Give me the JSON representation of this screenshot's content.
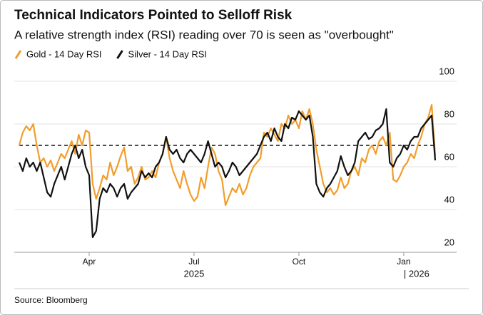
{
  "chart_data": {
    "type": "line",
    "title": "Technical Indicators Pointed to Selloff Risk",
    "subtitle": "A relative strength index (RSI) reading over 70 is seen as \"overbought\"",
    "source": "Source: Bloomberg",
    "categories": [
      null,
      null,
      null,
      null,
      null,
      null,
      null,
      null,
      null,
      null,
      null,
      null,
      null,
      null,
      null,
      null,
      null,
      null,
      null,
      null,
      "Apr",
      null,
      null,
      null,
      null,
      null,
      null,
      null,
      null,
      null,
      null,
      null,
      null,
      null,
      null,
      null,
      null,
      null,
      null,
      null,
      null,
      null,
      null,
      null,
      null,
      null,
      null,
      null,
      null,
      null,
      "Jul",
      null,
      null,
      null,
      null,
      null,
      null,
      null,
      null,
      null,
      null,
      null,
      null,
      null,
      null,
      null,
      null,
      null,
      null,
      null,
      null,
      null,
      null,
      null,
      null,
      null,
      null,
      null,
      null,
      null,
      "Oct",
      null,
      null,
      null,
      null,
      null,
      null,
      null,
      null,
      null,
      null,
      null,
      null,
      null,
      null,
      null,
      null,
      null,
      null,
      null,
      null,
      null,
      null,
      null,
      null,
      null,
      null,
      null,
      null,
      null,
      "Jan",
      null,
      null,
      null,
      null,
      null,
      null,
      null,
      null,
      null
    ],
    "year_labels": [
      {
        "label": "2025",
        "category": "Jul"
      },
      {
        "label": "| 2026",
        "category": "Jan"
      }
    ],
    "series": [
      {
        "name": "Gold - 14 Day RSI",
        "color": "#f29d2b",
        "values": [
          70,
          76,
          79,
          77,
          80,
          70,
          62,
          64,
          60,
          63,
          58,
          62,
          66,
          64,
          68,
          72,
          66,
          75,
          70,
          77,
          76,
          52,
          45,
          50,
          56,
          54,
          62,
          56,
          60,
          65,
          69,
          58,
          60,
          52,
          55,
          60,
          54,
          55,
          58,
          55,
          62,
          66,
          74,
          64,
          58,
          54,
          50,
          58,
          52,
          47,
          44,
          46,
          55,
          50,
          60,
          69,
          66,
          58,
          54,
          42,
          46,
          50,
          48,
          52,
          47,
          50,
          56,
          60,
          62,
          64,
          76,
          74,
          78,
          75,
          72,
          80,
          78,
          84,
          80,
          82,
          78,
          86,
          82,
          87,
          80,
          68,
          60,
          52,
          48,
          50,
          47,
          49,
          55,
          50,
          52,
          58,
          60,
          56,
          64,
          62,
          68,
          70,
          66,
          72,
          74,
          70,
          76,
          54,
          53,
          56,
          60,
          62,
          66,
          64,
          70,
          74,
          80,
          83,
          89,
          65
        ]
      },
      {
        "name": "Silver - 14 Day RSI",
        "color": "#111111",
        "values": [
          62,
          58,
          64,
          60,
          62,
          58,
          62,
          55,
          48,
          46,
          52,
          56,
          60,
          54,
          60,
          66,
          70,
          64,
          68,
          60,
          56,
          27,
          30,
          45,
          50,
          48,
          52,
          50,
          46,
          50,
          52,
          45,
          48,
          50,
          52,
          58,
          55,
          57,
          55,
          60,
          62,
          66,
          74,
          68,
          66,
          68,
          64,
          62,
          66,
          68,
          66,
          64,
          62,
          66,
          72,
          66,
          60,
          62,
          60,
          55,
          58,
          62,
          60,
          56,
          58,
          60,
          62,
          64,
          66,
          70,
          74,
          76,
          72,
          78,
          74,
          72,
          80,
          78,
          83,
          82,
          86,
          84,
          82,
          84,
          74,
          52,
          48,
          46,
          50,
          52,
          55,
          58,
          65,
          60,
          56,
          58,
          62,
          72,
          74,
          76,
          73,
          74,
          77,
          78,
          80,
          87,
          62,
          60,
          64,
          66,
          70,
          68,
          72,
          74,
          74,
          78,
          80,
          82,
          84,
          63
        ]
      }
    ],
    "threshold": 70,
    "ylim": [
      20,
      100
    ],
    "yticks": [
      20,
      40,
      60,
      80,
      100
    ],
    "grid": true
  }
}
